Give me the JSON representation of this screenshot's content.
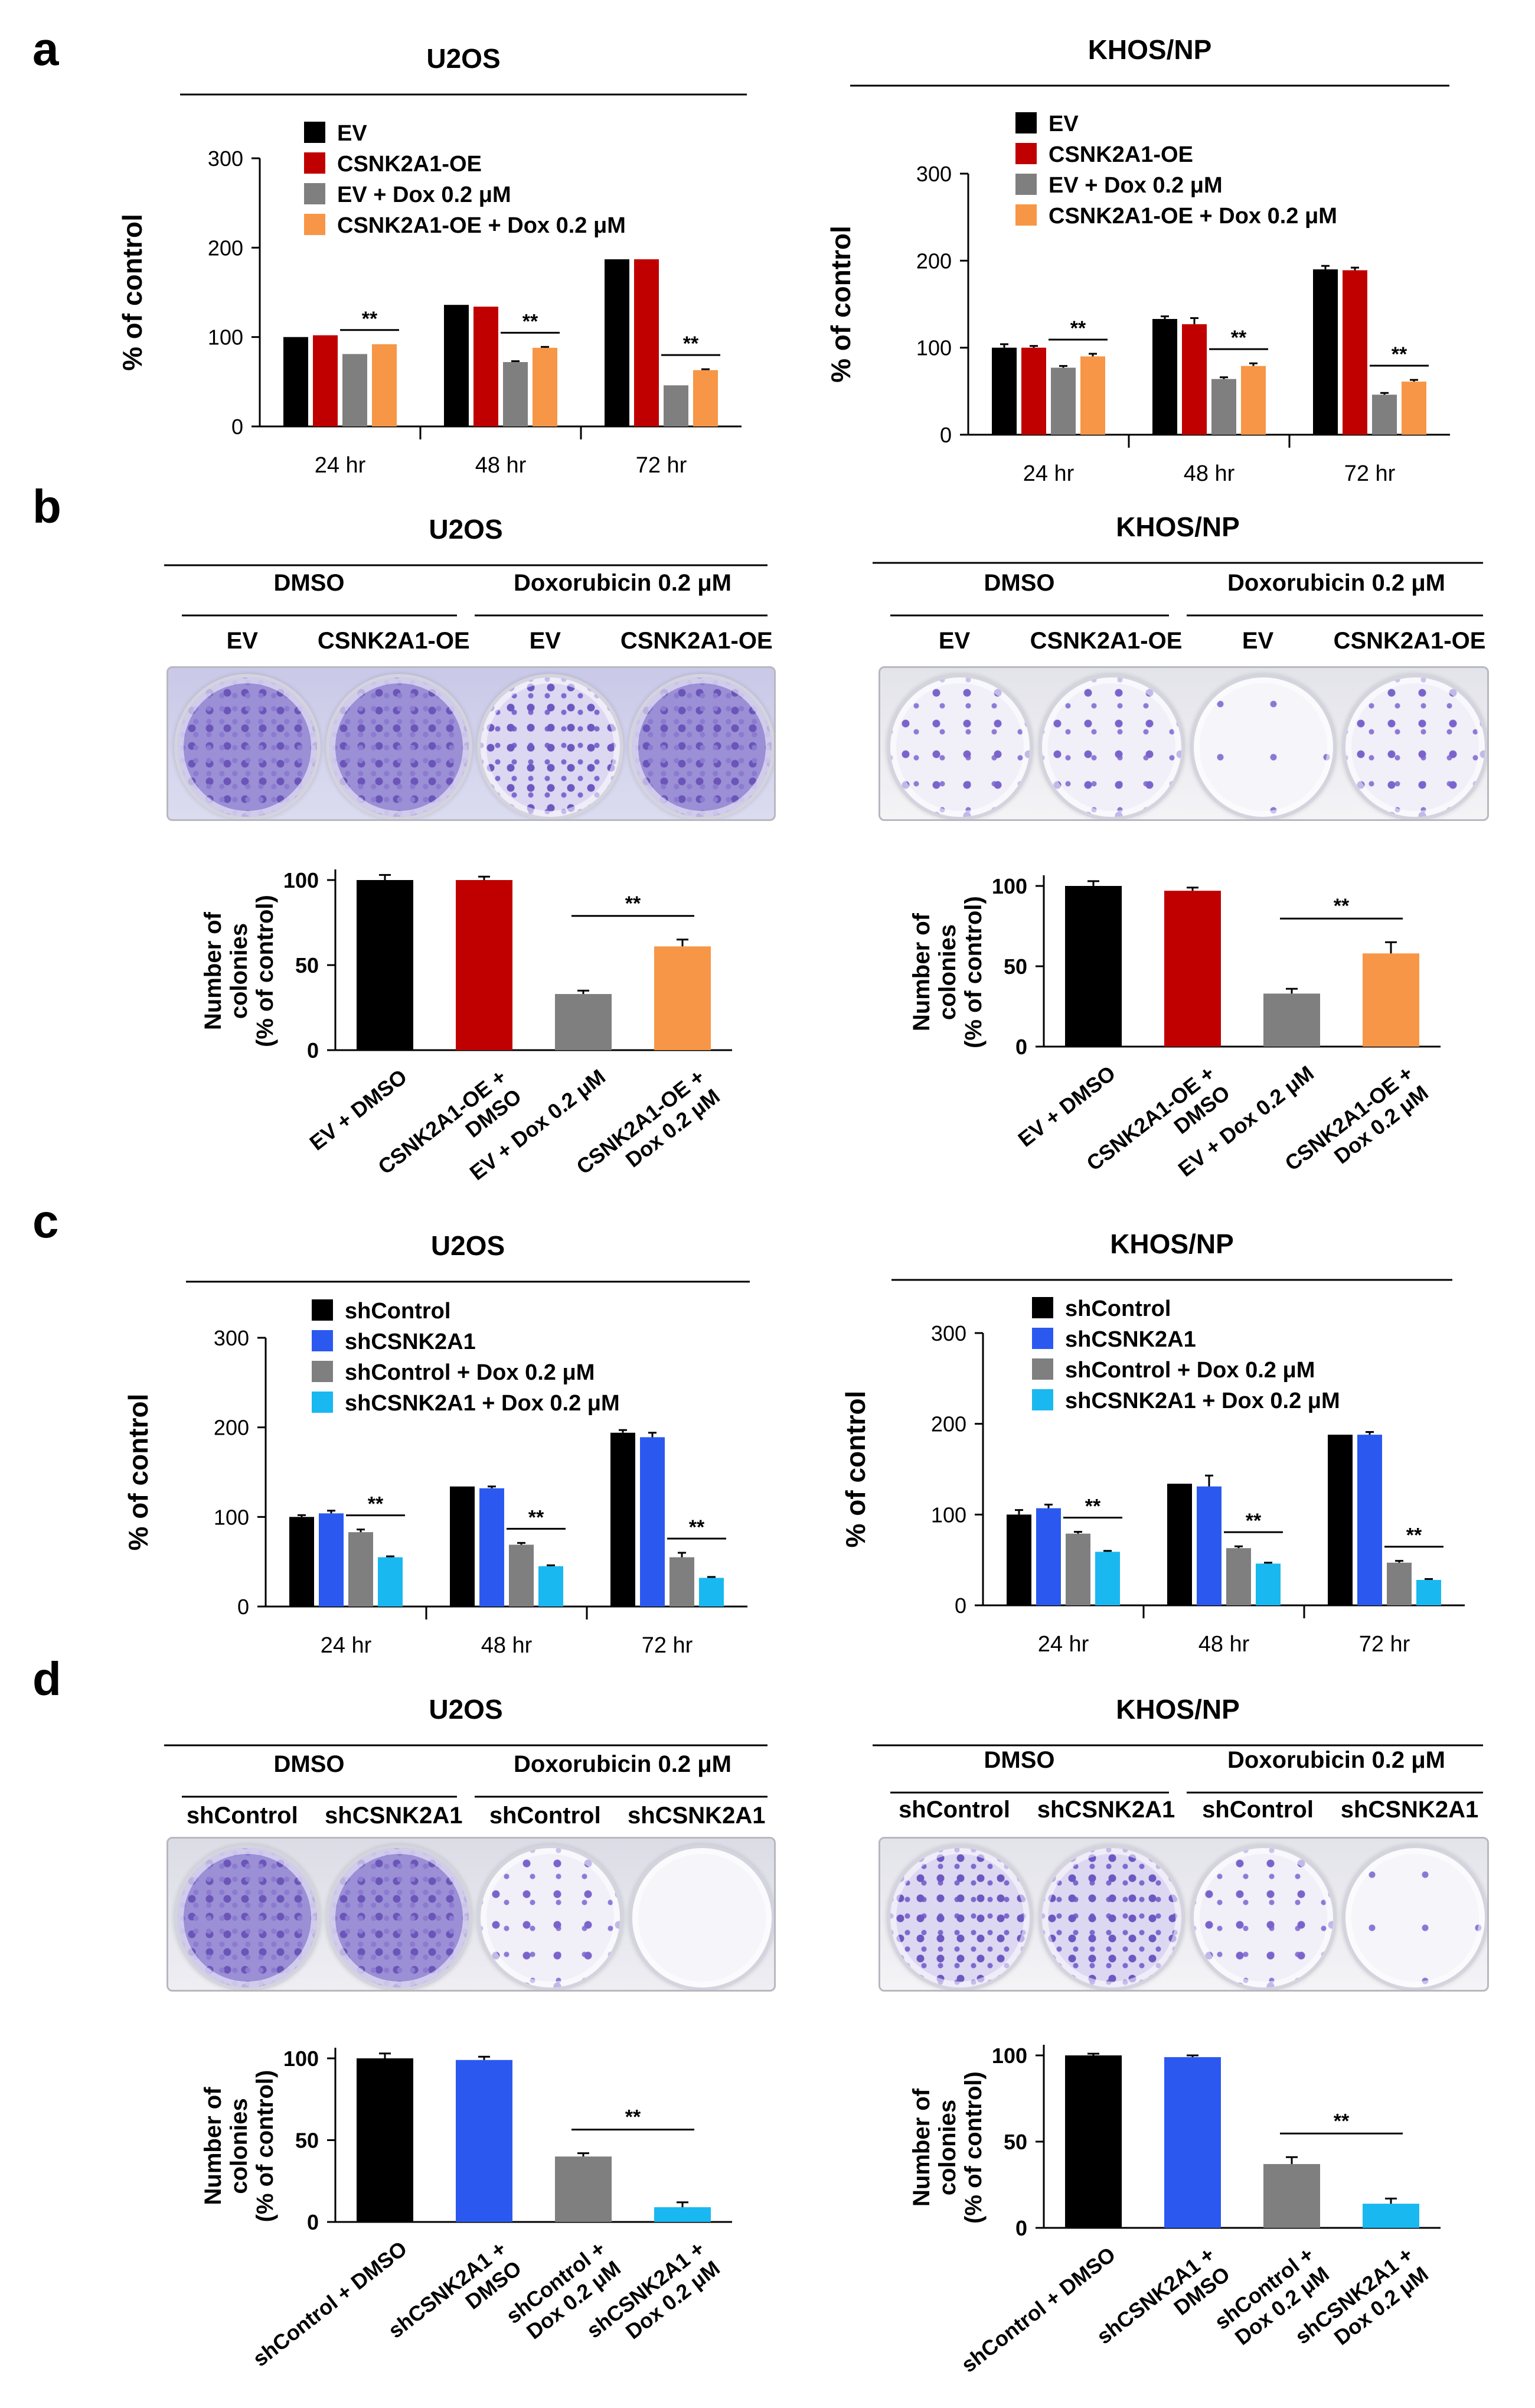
{
  "panel_letters": [
    "a",
    "b",
    "c",
    "d"
  ],
  "colors": {
    "black": "#000000",
    "red": "#c00000",
    "gray": "#7f7f7f",
    "orange": "#f79646",
    "blue": "#2b59f0",
    "cyan": "#19b8f0"
  },
  "chart_data": [
    {
      "id": "a-u2os",
      "type": "bar",
      "title": "U2OS",
      "ylabel": "% of control",
      "ylim": [
        0,
        300
      ],
      "yticks": [
        0,
        100,
        200,
        300
      ],
      "categories": [
        "24 hr",
        "48 hr",
        "72 hr"
      ],
      "series": [
        {
          "name": "EV",
          "color": "#000000",
          "values": [
            100,
            136,
            187
          ],
          "errors": [
            0,
            0,
            0
          ]
        },
        {
          "name": "CSNK2A1-OE",
          "color": "#c00000",
          "values": [
            102,
            134,
            187
          ],
          "errors": [
            0,
            0,
            0
          ]
        },
        {
          "name": "EV + Dox 0.2 μM",
          "color": "#7f7f7f",
          "values": [
            81,
            72,
            46
          ],
          "errors": [
            0,
            1,
            0
          ]
        },
        {
          "name": "CSNK2A1-OE + Dox 0.2 μM",
          "color": "#f79646",
          "values": [
            92,
            88,
            63
          ],
          "errors": [
            0,
            1,
            1
          ]
        }
      ],
      "sig_label": "**"
    },
    {
      "id": "a-khos",
      "type": "bar",
      "title": "KHOS/NP",
      "ylabel": "% of control",
      "ylim": [
        0,
        300
      ],
      "yticks": [
        0,
        100,
        200,
        300
      ],
      "categories": [
        "24 hr",
        "48 hr",
        "72 hr"
      ],
      "series": [
        {
          "name": "EV",
          "color": "#000000",
          "values": [
            100,
            133,
            190
          ],
          "errors": [
            4,
            3,
            4
          ]
        },
        {
          "name": "CSNK2A1-OE",
          "color": "#c00000",
          "values": [
            100,
            127,
            189
          ],
          "errors": [
            2,
            7,
            3
          ]
        },
        {
          "name": "EV + Dox 0.2 μM",
          "color": "#7f7f7f",
          "values": [
            77,
            64,
            46
          ],
          "errors": [
            2,
            2,
            2
          ]
        },
        {
          "name": "CSNK2A1-OE + Dox 0.2 μM",
          "color": "#f79646",
          "values": [
            90,
            79,
            61
          ],
          "errors": [
            3,
            3,
            2
          ]
        }
      ],
      "sig_label": "**"
    },
    {
      "id": "b-u2os",
      "type": "bar",
      "ylabel_lines": [
        "Number of",
        "colonies",
        "(% of control)"
      ],
      "ylim": [
        0,
        100
      ],
      "yticks": [
        0,
        50,
        100
      ],
      "categories": [
        [
          "EV + DMSO"
        ],
        [
          "CSNK2A1-OE +",
          "DMSO"
        ],
        [
          "EV + Dox 0.2 μM"
        ],
        [
          "CSNK2A1-OE +",
          "Dox 0.2 μM"
        ]
      ],
      "values": [
        100,
        100,
        33,
        61
      ],
      "errors": [
        3,
        2,
        2,
        4
      ],
      "colors": [
        "#000000",
        "#c00000",
        "#7f7f7f",
        "#f79646"
      ],
      "sig": {
        "from": 2,
        "to": 3,
        "label": "**"
      }
    },
    {
      "id": "b-khos",
      "type": "bar",
      "ylabel_lines": [
        "Number of",
        "colonies",
        "(% of control)"
      ],
      "ylim": [
        0,
        100
      ],
      "yticks": [
        0,
        50,
        100
      ],
      "categories": [
        [
          "EV + DMSO"
        ],
        [
          "CSNK2A1-OE +",
          "DMSO"
        ],
        [
          "EV + Dox 0.2 μM"
        ],
        [
          "CSNK2A1-OE +",
          "Dox 0.2 μM"
        ]
      ],
      "values": [
        100,
        97,
        33,
        58
      ],
      "errors": [
        3,
        2,
        3,
        7
      ],
      "colors": [
        "#000000",
        "#c00000",
        "#7f7f7f",
        "#f79646"
      ],
      "sig": {
        "from": 2,
        "to": 3,
        "label": "**"
      }
    },
    {
      "id": "c-u2os",
      "type": "bar",
      "title": "U2OS",
      "ylabel": "% of control",
      "ylim": [
        0,
        300
      ],
      "yticks": [
        0,
        100,
        200,
        300
      ],
      "categories": [
        "24 hr",
        "48 hr",
        "72 hr"
      ],
      "series": [
        {
          "name": "shControl",
          "color": "#000000",
          "values": [
            100,
            134,
            194
          ],
          "errors": [
            2,
            0,
            3
          ]
        },
        {
          "name": "shCSNK2A1",
          "color": "#2b59f0",
          "values": [
            104,
            132,
            189
          ],
          "errors": [
            3,
            2,
            5
          ]
        },
        {
          "name": "shControl + Dox 0.2 μM",
          "color": "#7f7f7f",
          "values": [
            83,
            69,
            55
          ],
          "errors": [
            3,
            2,
            5
          ]
        },
        {
          "name": "shCSNK2A1 + Dox 0.2 μM",
          "color": "#19b8f0",
          "values": [
            55,
            45,
            32
          ],
          "errors": [
            1,
            1,
            1
          ]
        }
      ],
      "sig_label": "**"
    },
    {
      "id": "c-khos",
      "type": "bar",
      "title": "KHOS/NP",
      "ylabel": "% of control",
      "ylim": [
        0,
        300
      ],
      "yticks": [
        0,
        100,
        200,
        300
      ],
      "categories": [
        "24 hr",
        "48 hr",
        "72 hr"
      ],
      "series": [
        {
          "name": "shControl",
          "color": "#000000",
          "values": [
            100,
            134,
            188
          ],
          "errors": [
            5,
            0,
            0
          ]
        },
        {
          "name": "shCSNK2A1",
          "color": "#2b59f0",
          "values": [
            107,
            131,
            188
          ],
          "errors": [
            4,
            12,
            3
          ]
        },
        {
          "name": "shControl + Dox 0.2 μM",
          "color": "#7f7f7f",
          "values": [
            79,
            63,
            47
          ],
          "errors": [
            2,
            2,
            2
          ]
        },
        {
          "name": "shCSNK2A1 + Dox 0.2 μM",
          "color": "#19b8f0",
          "values": [
            59,
            46,
            28
          ],
          "errors": [
            1,
            1,
            1
          ]
        }
      ],
      "sig_label": "**"
    },
    {
      "id": "d-u2os",
      "type": "bar",
      "ylabel_lines": [
        "Number of",
        "colonies",
        "(% of control)"
      ],
      "ylim": [
        0,
        100
      ],
      "yticks": [
        0,
        50,
        100
      ],
      "categories": [
        [
          "shControl + DMSO"
        ],
        [
          "shCSNK2A1 +",
          "DMSO"
        ],
        [
          "shControl +",
          "Dox 0.2 μM"
        ],
        [
          "shCSNK2A1 +",
          "Dox 0.2 μM"
        ]
      ],
      "values": [
        100,
        99,
        40,
        9
      ],
      "errors": [
        3,
        2,
        2,
        3
      ],
      "colors": [
        "#000000",
        "#2b59f0",
        "#7f7f7f",
        "#19b8f0"
      ],
      "sig": {
        "from": 2,
        "to": 3,
        "label": "**"
      }
    },
    {
      "id": "d-khos",
      "type": "bar",
      "ylabel_lines": [
        "Number of",
        "colonies",
        "(% of control)"
      ],
      "ylim": [
        0,
        100
      ],
      "yticks": [
        0,
        50,
        100
      ],
      "categories": [
        [
          "shControl + DMSO"
        ],
        [
          "shCSNK2A1 +",
          "DMSO"
        ],
        [
          "shControl +",
          "Dox 0.2 μM"
        ],
        [
          "shCSNK2A1 +",
          "Dox 0.2 μM"
        ]
      ],
      "values": [
        100,
        99,
        37,
        14
      ],
      "errors": [
        1,
        1,
        4,
        3
      ],
      "colors": [
        "#000000",
        "#2b59f0",
        "#7f7f7f",
        "#19b8f0"
      ],
      "sig": {
        "from": 2,
        "to": 3,
        "label": "**"
      }
    }
  ],
  "plates": [
    {
      "id": "b-u2os",
      "title": "U2OS",
      "groups": [
        "DMSO",
        "Doxorubicin 0.2 μM"
      ],
      "labels": [
        "EV",
        "CSNK2A1-OE",
        "EV",
        "CSNK2A1-OE"
      ]
    },
    {
      "id": "b-khos",
      "title": "KHOS/NP",
      "groups": [
        "DMSO",
        "Doxorubicin 0.2 μM"
      ],
      "labels": [
        "EV",
        "CSNK2A1-OE",
        "EV",
        "CSNK2A1-OE"
      ]
    },
    {
      "id": "d-u2os",
      "title": "U2OS",
      "groups": [
        "DMSO",
        "Doxorubicin 0.2 μM"
      ],
      "labels": [
        "shControl",
        "shCSNK2A1",
        "shControl",
        "shCSNK2A1"
      ]
    },
    {
      "id": "d-khos",
      "title": "KHOS/NP",
      "groups": [
        "DMSO",
        "Doxorubicin 0.2 μM"
      ],
      "labels": [
        "shControl",
        "shCSNK2A1",
        "shControl",
        "shCSNK2A1"
      ]
    }
  ]
}
